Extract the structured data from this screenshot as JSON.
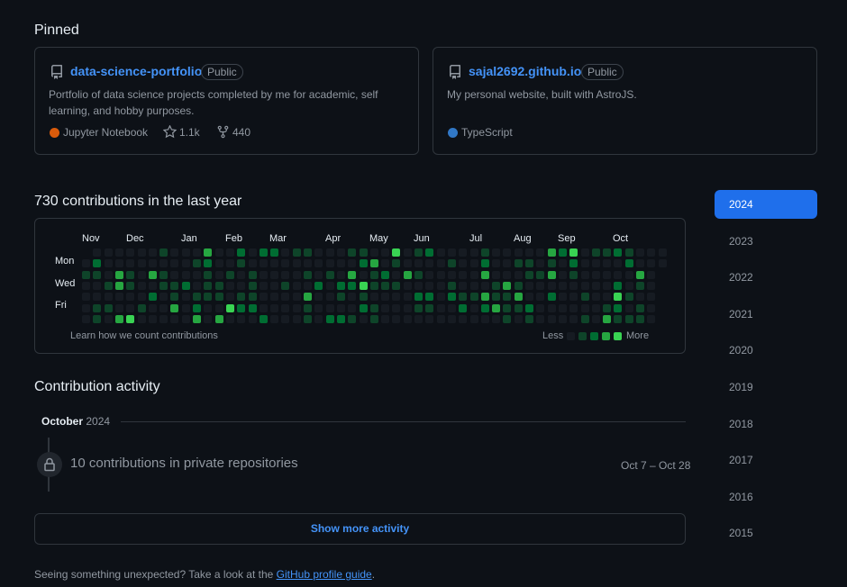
{
  "pinned": {
    "heading": "Pinned",
    "repos": [
      {
        "name": "data-science-portfolio",
        "visibility": "Public",
        "description_line1": "Portfolio of data science projects completed by me for academic, self",
        "description_line2": "learning, and hobby purposes.",
        "language": "Jupyter Notebook",
        "language_color": "#DA5B0B",
        "stars": "1.1k",
        "forks": "440"
      },
      {
        "name": "sajal2692.github.io",
        "visibility": "Public",
        "description_line1": "My personal website, built with AstroJS.",
        "language": "TypeScript",
        "language_color": "#3178c6"
      }
    ]
  },
  "contributions": {
    "heading": "730 contributions in the last year",
    "months": [
      "Nov",
      "Dec",
      "Jan",
      "Feb",
      "Mar",
      "Apr",
      "May",
      "Jun",
      "Jul",
      "Aug",
      "Sep",
      "Oct"
    ],
    "days": [
      "Mon",
      "Wed",
      "Fri"
    ],
    "learn_link": "Learn how we count contributions",
    "legend_less": "Less",
    "legend_more": "More",
    "level_colors": [
      "#161b22",
      "#0e4429",
      "#006d32",
      "#26a641",
      "#39d353"
    ]
  },
  "activity": {
    "heading": "Contribution activity",
    "month": "October",
    "year": "2024",
    "item_text": "10 contributions in private repositories",
    "item_date": "Oct 7 – Oct 28",
    "show_more": "Show more activity"
  },
  "years": [
    "2024",
    "2023",
    "2022",
    "2021",
    "2020",
    "2019",
    "2018",
    "2017",
    "2016",
    "2015"
  ],
  "footer": {
    "text": "Seeing something unexpected? Take a look at the ",
    "link": "GitHub profile guide",
    "end": "."
  }
}
